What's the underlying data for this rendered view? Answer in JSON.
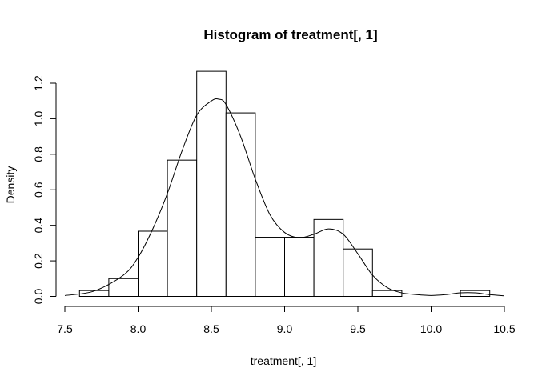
{
  "chart_data": {
    "type": "bar",
    "title": "Histogram of treatment[, 1]",
    "xlabel": "treatment[, 1]",
    "ylabel": "Density",
    "xlim": [
      7.5,
      10.5
    ],
    "ylim": [
      0,
      1.25
    ],
    "x_ticks": [
      "7.5",
      "8.0",
      "8.5",
      "9.0",
      "9.5",
      "10.0",
      "10.5"
    ],
    "y_ticks": [
      "0.0",
      "0.2",
      "0.4",
      "0.6",
      "0.8",
      "1.0",
      "1.2"
    ],
    "grid": false,
    "bins": [
      {
        "x0": 7.6,
        "x1": 7.8,
        "density": 0.033
      },
      {
        "x0": 7.8,
        "x1": 8.0,
        "density": 0.1
      },
      {
        "x0": 8.0,
        "x1": 8.2,
        "density": 0.367
      },
      {
        "x0": 8.2,
        "x1": 8.4,
        "density": 0.767
      },
      {
        "x0": 8.4,
        "x1": 8.6,
        "density": 1.267
      },
      {
        "x0": 8.6,
        "x1": 8.8,
        "density": 1.033
      },
      {
        "x0": 8.8,
        "x1": 9.0,
        "density": 0.333
      },
      {
        "x0": 9.0,
        "x1": 9.2,
        "density": 0.333
      },
      {
        "x0": 9.2,
        "x1": 9.4,
        "density": 0.433
      },
      {
        "x0": 9.4,
        "x1": 9.6,
        "density": 0.267
      },
      {
        "x0": 9.6,
        "x1": 9.8,
        "density": 0.033
      },
      {
        "x0": 9.8,
        "x1": 10.0,
        "density": 0.0
      },
      {
        "x0": 10.0,
        "x1": 10.2,
        "density": 0.0
      },
      {
        "x0": 10.2,
        "x1": 10.4,
        "density": 0.033
      }
    ],
    "density_curve": {
      "x": [
        7.5,
        7.7,
        7.9,
        8.0,
        8.1,
        8.2,
        8.3,
        8.4,
        8.5,
        8.55,
        8.6,
        8.7,
        8.8,
        8.9,
        9.0,
        9.1,
        9.2,
        9.3,
        9.4,
        9.5,
        9.6,
        9.7,
        9.8,
        9.9,
        10.0,
        10.1,
        10.2,
        10.3,
        10.4,
        10.5
      ],
      "y": [
        0.005,
        0.03,
        0.12,
        0.22,
        0.38,
        0.58,
        0.82,
        1.02,
        1.1,
        1.11,
        1.08,
        0.9,
        0.66,
        0.46,
        0.36,
        0.33,
        0.35,
        0.38,
        0.35,
        0.24,
        0.12,
        0.05,
        0.02,
        0.01,
        0.005,
        0.01,
        0.02,
        0.02,
        0.01,
        0.003
      ]
    }
  }
}
